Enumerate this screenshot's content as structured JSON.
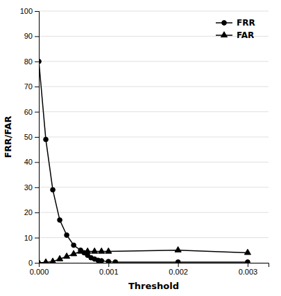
{
  "chart_data": {
    "type": "line",
    "xlabel": "Threshold",
    "ylabel": "FRR/FAR",
    "xlim": [
      0.0,
      0.0033
    ],
    "ylim": [
      0,
      100
    ],
    "xticks": [
      {
        "value": 0.0,
        "label": "0.000"
      },
      {
        "value": 0.001,
        "label": "0.001"
      },
      {
        "value": 0.002,
        "label": "0.002"
      },
      {
        "value": 0.003,
        "label": "0.003"
      }
    ],
    "yticks": [
      0,
      10,
      20,
      30,
      40,
      50,
      60,
      70,
      80,
      90,
      100
    ],
    "grid": true,
    "legend": "upper right",
    "series": [
      {
        "name": "FRR",
        "color": "#000000",
        "marker": "circle",
        "x": [
          0.0,
          0.0001,
          0.0002,
          0.0003,
          0.0004,
          0.0005,
          0.0006,
          0.00065,
          0.0007,
          0.00075,
          0.0008,
          0.00085,
          0.0009,
          0.001,
          0.0011,
          0.002,
          0.003
        ],
        "values": [
          80,
          49,
          29,
          17,
          11,
          7,
          5,
          4,
          3,
          2,
          1.5,
          1,
          0.8,
          0.5,
          0.3,
          0.3,
          0.3
        ]
      },
      {
        "name": "FAR",
        "color": "#000000",
        "marker": "triangle",
        "x": [
          0.0,
          0.0001,
          0.0002,
          0.0003,
          0.0004,
          0.0005,
          0.0006,
          0.0007,
          0.0008,
          0.0009,
          0.001,
          0.002,
          0.003
        ],
        "values": [
          0,
          0.2,
          0.5,
          1.5,
          2.5,
          3.5,
          4.5,
          4.5,
          4.5,
          4.5,
          4.5,
          5,
          4
        ]
      }
    ]
  }
}
